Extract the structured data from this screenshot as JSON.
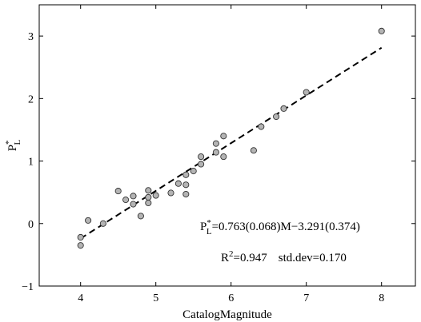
{
  "chart_data": {
    "type": "scatter",
    "title": "",
    "xlabel": "CatalogMagnitude",
    "ylabel_main": "P",
    "ylabel_sup": "*",
    "ylabel_sub": "L",
    "xlim": [
      3.45,
      8.45
    ],
    "ylim": [
      -1,
      3.5
    ],
    "xticks": [
      4,
      5,
      6,
      7,
      8
    ],
    "yticks": [
      -1,
      0,
      1,
      2,
      3
    ],
    "grid": false,
    "points": [
      {
        "x": 4.0,
        "y": -0.22
      },
      {
        "x": 4.0,
        "y": -0.35
      },
      {
        "x": 4.1,
        "y": 0.05
      },
      {
        "x": 4.3,
        "y": 0.0
      },
      {
        "x": 4.5,
        "y": 0.52
      },
      {
        "x": 4.6,
        "y": 0.38
      },
      {
        "x": 4.7,
        "y": 0.44
      },
      {
        "x": 4.7,
        "y": 0.31
      },
      {
        "x": 4.8,
        "y": 0.12
      },
      {
        "x": 4.9,
        "y": 0.53
      },
      {
        "x": 4.9,
        "y": 0.42
      },
      {
        "x": 4.9,
        "y": 0.33
      },
      {
        "x": 5.0,
        "y": 0.45
      },
      {
        "x": 5.2,
        "y": 0.49
      },
      {
        "x": 5.3,
        "y": 0.64
      },
      {
        "x": 5.4,
        "y": 0.78
      },
      {
        "x": 5.4,
        "y": 0.62
      },
      {
        "x": 5.4,
        "y": 0.47
      },
      {
        "x": 5.5,
        "y": 0.84
      },
      {
        "x": 5.6,
        "y": 0.95
      },
      {
        "x": 5.6,
        "y": 1.07
      },
      {
        "x": 5.8,
        "y": 1.28
      },
      {
        "x": 5.8,
        "y": 1.14
      },
      {
        "x": 5.9,
        "y": 1.4
      },
      {
        "x": 5.9,
        "y": 1.07
      },
      {
        "x": 6.3,
        "y": 1.17
      },
      {
        "x": 6.4,
        "y": 1.55
      },
      {
        "x": 6.6,
        "y": 1.71
      },
      {
        "x": 6.7,
        "y": 1.84
      },
      {
        "x": 7.0,
        "y": 2.1
      },
      {
        "x": 8.0,
        "y": 3.08
      }
    ],
    "fit_line": {
      "x": [
        4.0,
        8.0
      ],
      "y": [
        -0.239,
        2.813
      ]
    },
    "annotation_equation": {
      "main": "P",
      "sup": "*",
      "sub": "L",
      "rest": "=0.763(0.068)M−3.291(0.374)"
    },
    "annotation_stats": {
      "r_main": "R",
      "r_sup": "2",
      "r_rest": "=0.947",
      "std": "std.dev=0.170"
    },
    "colors": {
      "marker_fill": "#b4b4b4",
      "marker_stroke": "#333333",
      "line": "#000000",
      "axes": "#000000"
    }
  }
}
